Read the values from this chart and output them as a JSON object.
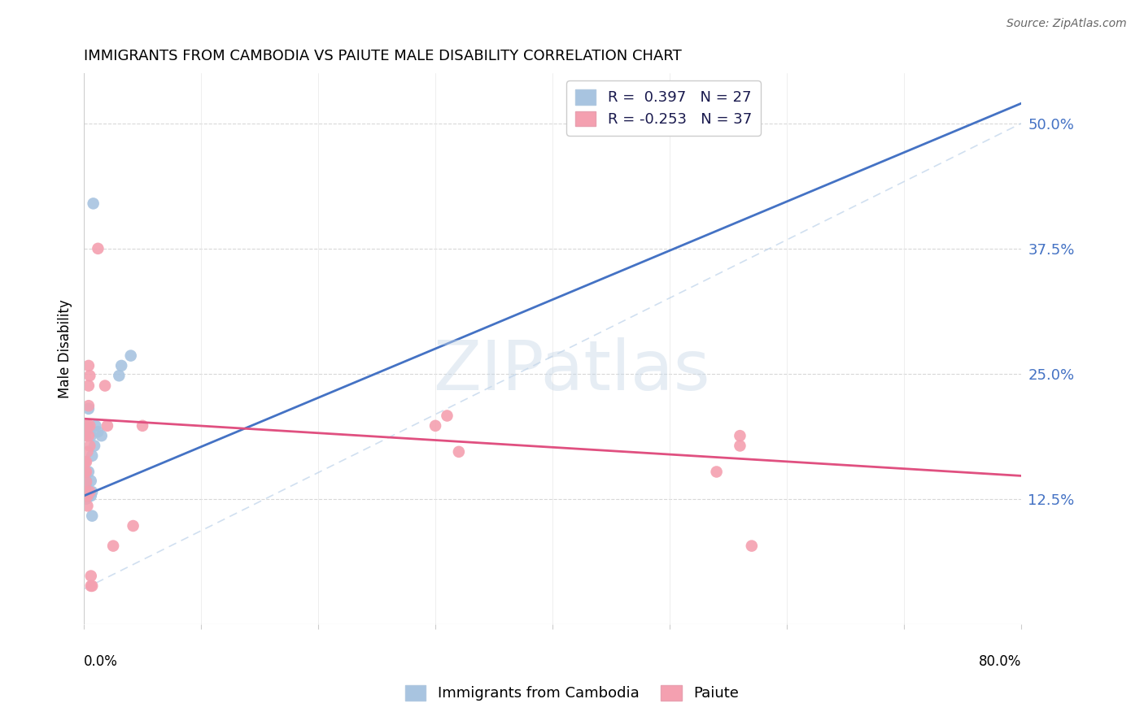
{
  "title": "IMMIGRANTS FROM CAMBODIA VS PAIUTE MALE DISABILITY CORRELATION CHART",
  "source": "Source: ZipAtlas.com",
  "ylabel": "Male Disability",
  "ytick_labels": [
    "12.5%",
    "25.0%",
    "37.5%",
    "50.0%"
  ],
  "ytick_values": [
    0.125,
    0.25,
    0.375,
    0.5
  ],
  "xlim": [
    0.0,
    0.8
  ],
  "ylim": [
    -0.02,
    0.58
  ],
  "plot_ylim": [
    0.0,
    0.55
  ],
  "watermark": "ZIPatlas",
  "r1": 0.397,
  "n1": 27,
  "r2": -0.253,
  "n2": 37,
  "cambodia_color": "#a8c4e0",
  "paiute_color": "#f4a0b0",
  "cambodia_line_color": "#4472c4",
  "paiute_line_color": "#e05080",
  "dashed_line_color": "#b8cfe8",
  "cambodia_points": [
    [
      0.001,
      0.13
    ],
    [
      0.001,
      0.135
    ],
    [
      0.001,
      0.14
    ],
    [
      0.001,
      0.145
    ],
    [
      0.001,
      0.15
    ],
    [
      0.002,
      0.125
    ],
    [
      0.002,
      0.13
    ],
    [
      0.002,
      0.14
    ],
    [
      0.002,
      0.143
    ],
    [
      0.004,
      0.128
    ],
    [
      0.004,
      0.152
    ],
    [
      0.004,
      0.195
    ],
    [
      0.004,
      0.215
    ],
    [
      0.006,
      0.128
    ],
    [
      0.006,
      0.143
    ],
    [
      0.006,
      0.188
    ],
    [
      0.007,
      0.108
    ],
    [
      0.007,
      0.132
    ],
    [
      0.007,
      0.168
    ],
    [
      0.009,
      0.178
    ],
    [
      0.01,
      0.198
    ],
    [
      0.012,
      0.192
    ],
    [
      0.015,
      0.188
    ],
    [
      0.03,
      0.248
    ],
    [
      0.032,
      0.258
    ],
    [
      0.04,
      0.268
    ],
    [
      0.008,
      0.42
    ]
  ],
  "paiute_points": [
    [
      0.001,
      0.132
    ],
    [
      0.001,
      0.152
    ],
    [
      0.001,
      0.162
    ],
    [
      0.001,
      0.188
    ],
    [
      0.001,
      0.198
    ],
    [
      0.002,
      0.128
    ],
    [
      0.002,
      0.142
    ],
    [
      0.002,
      0.152
    ],
    [
      0.002,
      0.162
    ],
    [
      0.003,
      0.118
    ],
    [
      0.003,
      0.128
    ],
    [
      0.003,
      0.172
    ],
    [
      0.003,
      0.198
    ],
    [
      0.004,
      0.188
    ],
    [
      0.004,
      0.218
    ],
    [
      0.004,
      0.238
    ],
    [
      0.004,
      0.258
    ],
    [
      0.005,
      0.132
    ],
    [
      0.005,
      0.178
    ],
    [
      0.005,
      0.198
    ],
    [
      0.005,
      0.248
    ],
    [
      0.006,
      0.038
    ],
    [
      0.006,
      0.048
    ],
    [
      0.007,
      0.038
    ],
    [
      0.012,
      0.375
    ],
    [
      0.018,
      0.238
    ],
    [
      0.02,
      0.198
    ],
    [
      0.025,
      0.078
    ],
    [
      0.042,
      0.098
    ],
    [
      0.05,
      0.198
    ],
    [
      0.3,
      0.198
    ],
    [
      0.31,
      0.208
    ],
    [
      0.32,
      0.172
    ],
    [
      0.54,
      0.152
    ],
    [
      0.56,
      0.178
    ],
    [
      0.56,
      0.188
    ],
    [
      0.57,
      0.078
    ]
  ],
  "cambodia_line": [
    [
      0.0,
      0.128
    ],
    [
      0.8,
      0.52
    ]
  ],
  "paiute_line": [
    [
      0.0,
      0.205
    ],
    [
      0.8,
      0.148
    ]
  ]
}
